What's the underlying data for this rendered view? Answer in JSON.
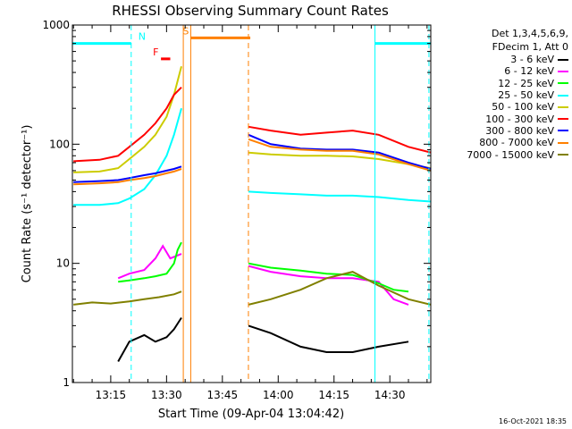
{
  "chart_data": {
    "type": "line",
    "title": "RHESSI Observing Summary Count Rates",
    "xlabel": "Start Time (09-Apr-04 13:04:42)",
    "ylabel": "Count Rate (s⁻¹ detector⁻¹)",
    "yscale": "log",
    "xlim": [
      "13:04:42",
      "14:41:00"
    ],
    "ylim": [
      1,
      1000
    ],
    "x_ticks": [
      "13:15",
      "13:30",
      "13:45",
      "14:00",
      "14:15",
      "14:30"
    ],
    "y_ticks": [
      "1",
      "10",
      "100",
      "1000"
    ],
    "legend_placement": "right",
    "legend_header": [
      "Det 1,3,4,5,6,9,",
      "FDecim 1, Att 0"
    ],
    "series": [
      {
        "name": "3 - 6 keV",
        "color": "#000000",
        "segments": [
          {
            "x": [
              "13:17",
              "13:20",
              "13:24",
              "13:27",
              "13:30",
              "13:32",
              "13:34"
            ],
            "y": [
              1.5,
              2.2,
              2.5,
              2.2,
              2.4,
              2.8,
              3.5
            ]
          },
          {
            "x": [
              "13:52",
              "13:58",
              "14:06",
              "14:13",
              "14:20",
              "14:27",
              "14:35"
            ],
            "y": [
              3,
              2.6,
              2,
              1.8,
              1.8,
              2.0,
              2.2
            ]
          }
        ]
      },
      {
        "name": "6 - 12 keV",
        "color": "#ff00ff",
        "segments": [
          {
            "x": [
              "13:17",
              "13:20",
              "13:24",
              "13:27",
              "13:29",
              "13:31",
              "13:34"
            ],
            "y": [
              7.5,
              8.2,
              8.8,
              11,
              14,
              11,
              12
            ]
          },
          {
            "x": [
              "13:52",
              "13:58",
              "14:06",
              "14:13",
              "14:20",
              "14:27",
              "14:31",
              "14:35"
            ],
            "y": [
              9.5,
              8.5,
              7.8,
              7.5,
              7.5,
              7.0,
              5.0,
              4.5
            ]
          }
        ]
      },
      {
        "name": "12 - 25 keV",
        "color": "#00ff00",
        "segments": [
          {
            "x": [
              "13:17",
              "13:20",
              "13:24",
              "13:27",
              "13:30",
              "13:32",
              "13:33",
              "13:34"
            ],
            "y": [
              7,
              7.2,
              7.5,
              7.8,
              8.2,
              10,
              13,
              15
            ]
          },
          {
            "x": [
              "13:52",
              "13:58",
              "14:06",
              "14:13",
              "14:20",
              "14:27",
              "14:31",
              "14:35"
            ],
            "y": [
              10,
              9.2,
              8.7,
              8.2,
              8.0,
              6.8,
              6,
              5.8
            ]
          }
        ]
      },
      {
        "name": "25 - 50 keV",
        "color": "#00ffff",
        "segments": [
          {
            "x": [
              "13:05",
              "13:12",
              "13:17",
              "13:20",
              "13:24",
              "13:27",
              "13:30",
              "13:32",
              "13:34"
            ],
            "y": [
              31,
              31,
              32,
              35,
              42,
              55,
              80,
              120,
              200
            ]
          },
          {
            "x": [
              "13:52",
              "13:58",
              "14:06",
              "14:13",
              "14:20",
              "14:27",
              "14:35",
              "14:41"
            ],
            "y": [
              40,
              39,
              38,
              37,
              37,
              36,
              34,
              33
            ]
          }
        ]
      },
      {
        "name": "50 - 100 keV",
        "color": "#cccc00",
        "segments": [
          {
            "x": [
              "13:05",
              "13:12",
              "13:17",
              "13:20",
              "13:24",
              "13:27",
              "13:30",
              "13:32",
              "13:34"
            ],
            "y": [
              58,
              59,
              63,
              75,
              95,
              120,
              170,
              260,
              450
            ]
          },
          {
            "x": [
              "13:52",
              "13:58",
              "14:06",
              "14:13",
              "14:20",
              "14:27",
              "14:35",
              "14:41"
            ],
            "y": [
              85,
              82,
              80,
              80,
              79,
              75,
              68,
              63
            ]
          }
        ]
      },
      {
        "name": "100 - 300 keV",
        "color": "#ff0000",
        "segments": [
          {
            "x": [
              "13:05",
              "13:12",
              "13:17",
              "13:20",
              "13:24",
              "13:27",
              "13:30",
              "13:32",
              "13:34"
            ],
            "y": [
              72,
              74,
              80,
              95,
              120,
              150,
              200,
              260,
              300
            ]
          },
          {
            "x": [
              "13:52",
              "13:58",
              "14:06",
              "14:13",
              "14:20",
              "14:27",
              "14:35",
              "14:41"
            ],
            "y": [
              140,
              130,
              120,
              125,
              130,
              120,
              95,
              85
            ]
          }
        ]
      },
      {
        "name": "300 - 800 keV",
        "color": "#0000ff",
        "segments": [
          {
            "x": [
              "13:05",
              "13:12",
              "13:17",
              "13:20",
              "13:24",
              "13:27",
              "13:30",
              "13:32",
              "13:34"
            ],
            "y": [
              48,
              49,
              50,
              52,
              55,
              57,
              60,
              62,
              65
            ]
          },
          {
            "x": [
              "13:52",
              "13:58",
              "14:06",
              "14:13",
              "14:20",
              "14:27",
              "14:35",
              "14:41"
            ],
            "y": [
              120,
              100,
              92,
              90,
              90,
              85,
              70,
              62
            ]
          }
        ]
      },
      {
        "name": "800 - 7000 keV",
        "color": "#ff8000",
        "segments": [
          {
            "x": [
              "13:05",
              "13:12",
              "13:17",
              "13:20",
              "13:24",
              "13:27",
              "13:30",
              "13:32",
              "13:34"
            ],
            "y": [
              46,
              47,
              48,
              50,
              52,
              54,
              57,
              59,
              62
            ]
          },
          {
            "x": [
              "13:52",
              "13:58",
              "14:06",
              "14:13",
              "14:20",
              "14:27",
              "14:35",
              "14:41"
            ],
            "y": [
              110,
              95,
              90,
              88,
              88,
              82,
              68,
              60
            ]
          }
        ]
      },
      {
        "name": "7000 - 15000 keV",
        "color": "#808000",
        "segments": [
          {
            "x": [
              "13:05",
              "13:10",
              "13:15",
              "13:20",
              "13:24",
              "13:28",
              "13:32",
              "13:34"
            ],
            "y": [
              4.5,
              4.7,
              4.6,
              4.8,
              5.0,
              5.2,
              5.5,
              5.8
            ]
          },
          {
            "x": [
              "13:52",
              "13:58",
              "14:06",
              "14:13",
              "14:20",
              "14:27",
              "14:35",
              "14:41"
            ],
            "y": [
              4.5,
              5,
              6,
              7.5,
              8.5,
              6.5,
              5,
              4.5
            ]
          }
        ]
      }
    ],
    "flag_bars": [
      {
        "label": "N",
        "color": "#00ffff",
        "x": [
          "13:04:42",
          "13:20:30"
        ],
        "y": 700
      },
      {
        "label": "N",
        "color": "#00ffff",
        "x": [
          "14:26:00",
          "14:41:00"
        ],
        "y": 700
      },
      {
        "label": "S",
        "color": "#ff8000",
        "x": [
          "13:36:30",
          "13:52:30"
        ],
        "y": 780
      },
      {
        "label": "F",
        "color": "#ff0000",
        "x": [
          "13:28:30",
          "13:31:00"
        ],
        "y": 520
      }
    ],
    "vlines": [
      {
        "x": "13:20:30",
        "color": "#00ffff",
        "style": "dashed"
      },
      {
        "x": "14:26:00",
        "color": "#00ffff",
        "style": "solid"
      },
      {
        "x": "14:40:30",
        "color": "#00ffff",
        "style": "dashed"
      },
      {
        "x": "13:34:30",
        "color": "#ff8000",
        "style": "solid"
      },
      {
        "x": "13:36:30",
        "color": "#ff8000",
        "style": "solid"
      },
      {
        "x": "13:52:00",
        "color": "#ff8000",
        "style": "dashed"
      }
    ]
  },
  "footer": {
    "date_stamp": "16-Oct-2021 18:35"
  }
}
